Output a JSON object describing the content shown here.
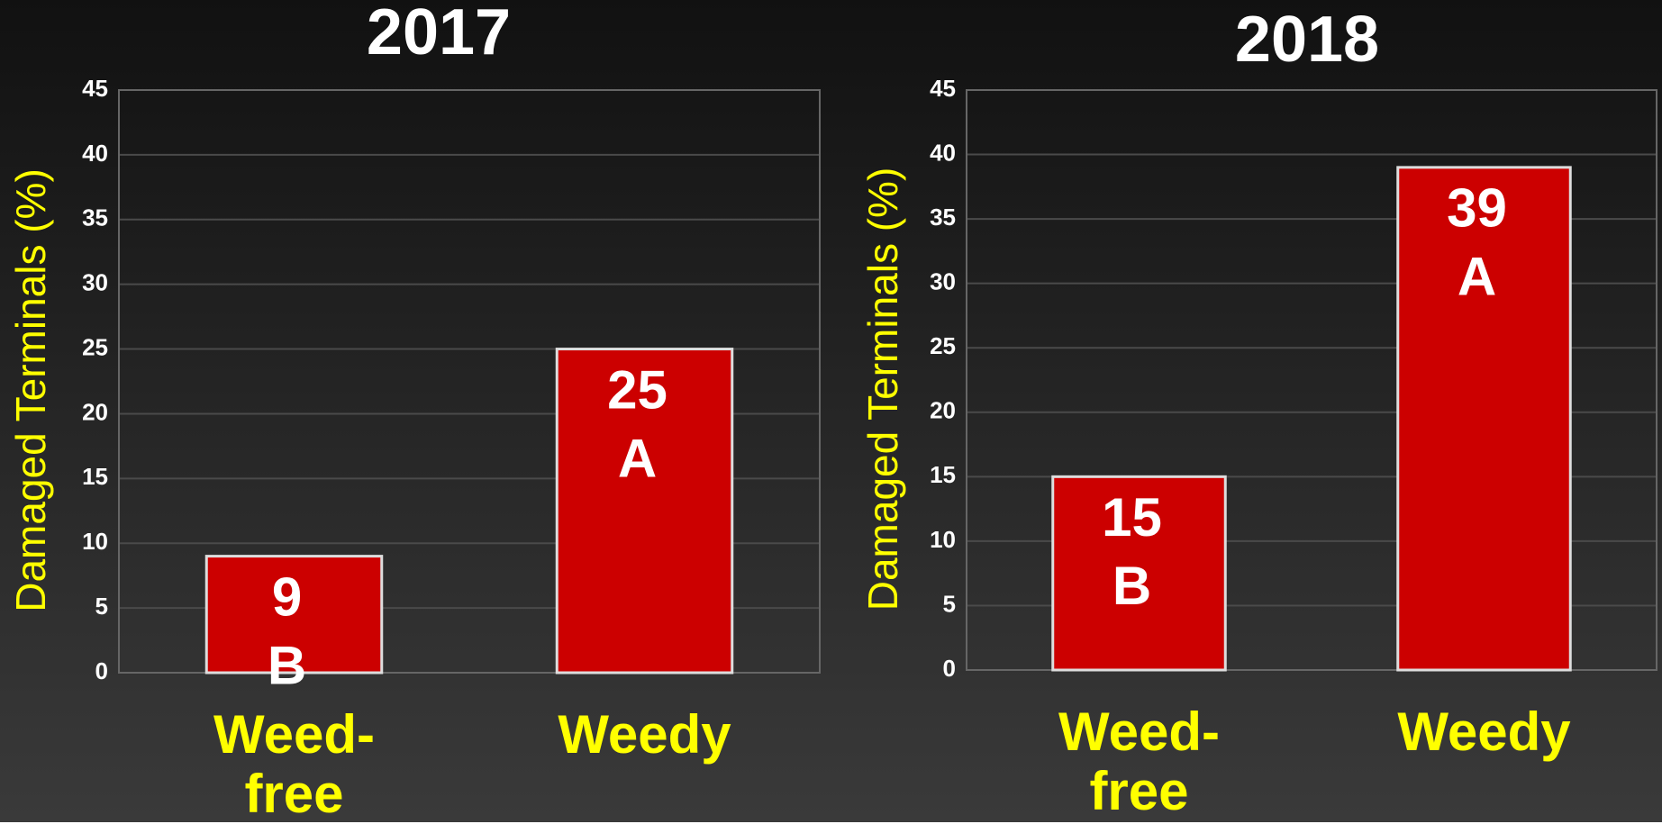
{
  "chart_data": [
    {
      "type": "bar",
      "title": "2017",
      "y_label": "Damaged Terminals (%)",
      "categories": [
        "Weed-free",
        "Weedy"
      ],
      "values": [
        9,
        25
      ],
      "letters": [
        "B",
        "A"
      ],
      "color": "#cc0000",
      "ylim": [
        0,
        45
      ],
      "yticks": [
        0,
        5,
        10,
        15,
        20,
        25,
        30,
        35,
        40,
        45
      ],
      "grid": true
    },
    {
      "type": "bar",
      "title": "2018",
      "y_label": "Damaged Terminals (%)",
      "categories": [
        "Weed-free",
        "Weedy"
      ],
      "values": [
        15,
        39
      ],
      "letters": [
        "B",
        "A"
      ],
      "color": "#cc0000",
      "ylim": [
        0,
        45
      ],
      "yticks": [
        0,
        5,
        10,
        15,
        20,
        25,
        30,
        35,
        40,
        45
      ],
      "grid": true
    }
  ]
}
